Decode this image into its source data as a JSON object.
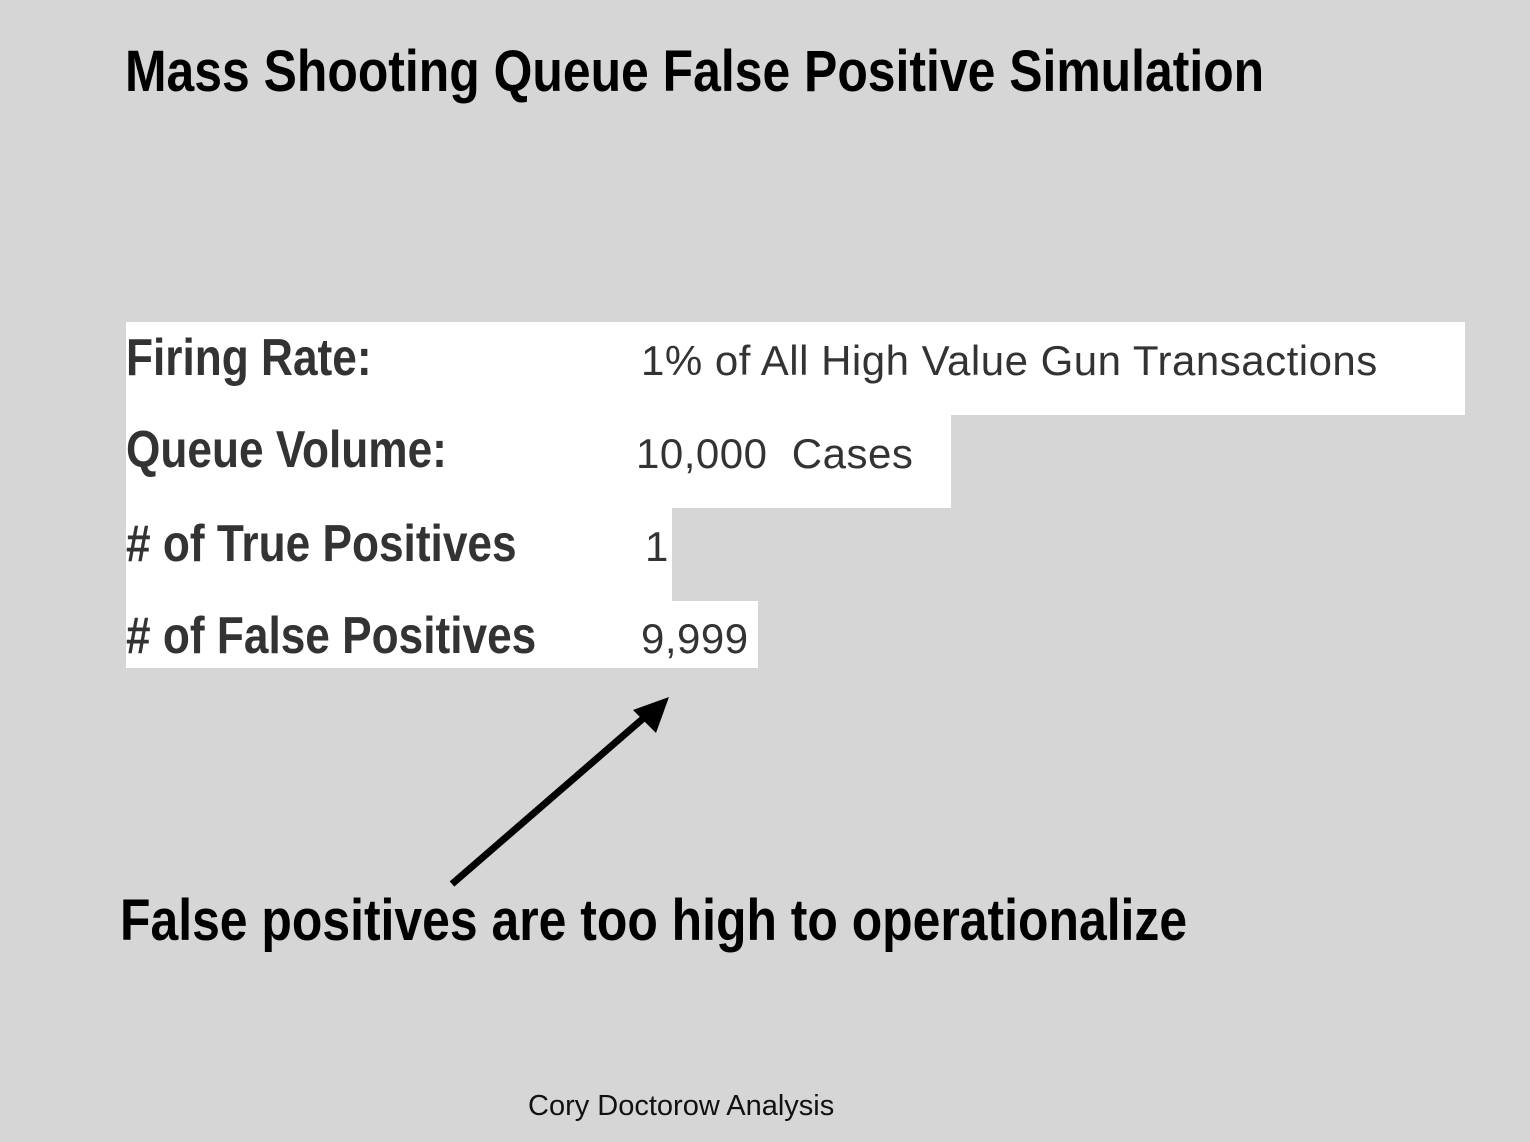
{
  "title": "Mass Shooting Queue False Positive Simulation",
  "rows": [
    {
      "label": "Firing Rate:",
      "value": "1% of All High Value Gun Transactions"
    },
    {
      "label": "Queue Volume:",
      "value": "10,000  Cases"
    },
    {
      "label": "# of True Positives",
      "value": "1"
    },
    {
      "label": "# of False Positives",
      "value": "9,999"
    }
  ],
  "conclusion": "False positives are too high to operationalize",
  "credit": "Cory Doctorow Analysis",
  "colors": {
    "background": "#d6d6d6",
    "row_highlight": "#ffffff",
    "text": "#333333",
    "arrow": "#000000"
  }
}
